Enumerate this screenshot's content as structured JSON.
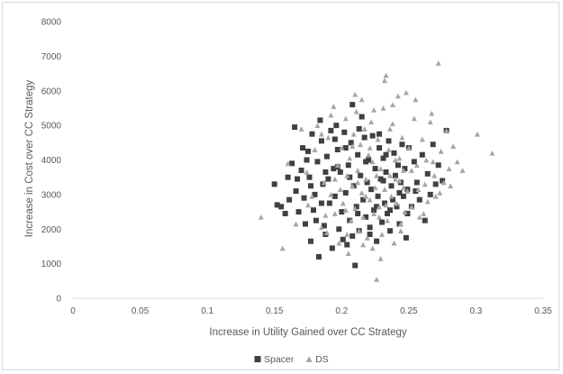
{
  "chart_data": {
    "type": "scatter",
    "title": "",
    "xlabel": "Increase in Utility Gained over CC Strategy",
    "ylabel": "Increase in Cost over CC Strategy",
    "xlim": [
      0,
      0.35
    ],
    "ylim": [
      0,
      8000
    ],
    "x_ticks": [
      "0",
      "0.05",
      "0.1",
      "0.15",
      "0.2",
      "0.25",
      "0.3",
      "0.35"
    ],
    "y_ticks": [
      "0",
      "1000",
      "2000",
      "3000",
      "4000",
      "5000",
      "6000",
      "7000",
      "8000"
    ],
    "grid": false,
    "legend_position": "bottom",
    "series": [
      {
        "name": "Spacer",
        "marker": "square",
        "color": "#404040",
        "points": [
          [
            0.15,
            3300
          ],
          [
            0.152,
            2700
          ],
          [
            0.155,
            2650
          ],
          [
            0.158,
            2450
          ],
          [
            0.16,
            3500
          ],
          [
            0.161,
            2850
          ],
          [
            0.163,
            3900
          ],
          [
            0.165,
            4950
          ],
          [
            0.166,
            3100
          ],
          [
            0.168,
            2500
          ],
          [
            0.17,
            3700
          ],
          [
            0.171,
            4350
          ],
          [
            0.172,
            2900
          ],
          [
            0.173,
            2150
          ],
          [
            0.175,
            4250
          ],
          [
            0.176,
            3500
          ],
          [
            0.177,
            1650
          ],
          [
            0.178,
            4750
          ],
          [
            0.179,
            2550
          ],
          [
            0.18,
            3000
          ],
          [
            0.181,
            2250
          ],
          [
            0.182,
            3950
          ],
          [
            0.183,
            1200
          ],
          [
            0.184,
            5150
          ],
          [
            0.185,
            4550
          ],
          [
            0.186,
            3300
          ],
          [
            0.187,
            2100
          ],
          [
            0.188,
            1850
          ],
          [
            0.189,
            4100
          ],
          [
            0.19,
            3450
          ],
          [
            0.191,
            2750
          ],
          [
            0.192,
            4850
          ],
          [
            0.193,
            1450
          ],
          [
            0.194,
            3750
          ],
          [
            0.195,
            2950
          ],
          [
            0.196,
            5000
          ],
          [
            0.197,
            4300
          ],
          [
            0.198,
            2000
          ],
          [
            0.199,
            3650
          ],
          [
            0.2,
            2500
          ],
          [
            0.201,
            1700
          ],
          [
            0.202,
            4800
          ],
          [
            0.203,
            3050
          ],
          [
            0.204,
            1550
          ],
          [
            0.205,
            3850
          ],
          [
            0.206,
            2250
          ],
          [
            0.207,
            4500
          ],
          [
            0.208,
            5600
          ],
          [
            0.209,
            3250
          ],
          [
            0.21,
            950
          ],
          [
            0.211,
            2650
          ],
          [
            0.212,
            4150
          ],
          [
            0.213,
            1950
          ],
          [
            0.214,
            3550
          ],
          [
            0.215,
            5250
          ],
          [
            0.216,
            2850
          ],
          [
            0.217,
            4650
          ],
          [
            0.218,
            2350
          ],
          [
            0.219,
            3350
          ],
          [
            0.22,
            4000
          ],
          [
            0.221,
            1850
          ],
          [
            0.222,
            3150
          ],
          [
            0.223,
            4700
          ],
          [
            0.224,
            2550
          ],
          [
            0.225,
            3750
          ],
          [
            0.226,
            1650
          ],
          [
            0.227,
            2950
          ],
          [
            0.228,
            4350
          ],
          [
            0.229,
            3450
          ],
          [
            0.23,
            2200
          ],
          [
            0.231,
            4050
          ],
          [
            0.232,
            2750
          ],
          [
            0.233,
            3650
          ],
          [
            0.234,
            2450
          ],
          [
            0.235,
            4550
          ],
          [
            0.236,
            1950
          ],
          [
            0.237,
            3250
          ],
          [
            0.238,
            2850
          ],
          [
            0.239,
            4200
          ],
          [
            0.24,
            3550
          ],
          [
            0.241,
            2650
          ],
          [
            0.242,
            3850
          ],
          [
            0.243,
            2150
          ],
          [
            0.244,
            3350
          ],
          [
            0.245,
            4450
          ],
          [
            0.246,
            2950
          ],
          [
            0.247,
            3750
          ],
          [
            0.248,
            1750
          ],
          [
            0.249,
            3150
          ],
          [
            0.25,
            4350
          ],
          [
            0.252,
            2650
          ],
          [
            0.254,
            3950
          ],
          [
            0.256,
            3350
          ],
          [
            0.258,
            2850
          ],
          [
            0.26,
            4150
          ],
          [
            0.262,
            2250
          ],
          [
            0.264,
            3600
          ],
          [
            0.266,
            3000
          ],
          [
            0.268,
            4450
          ],
          [
            0.27,
            3300
          ],
          [
            0.272,
            3850
          ],
          [
            0.275,
            3400
          ],
          [
            0.278,
            4850
          ],
          [
            0.197,
            3800
          ],
          [
            0.203,
            4350
          ],
          [
            0.218,
            3950
          ],
          [
            0.226,
            2650
          ],
          [
            0.233,
            4150
          ],
          [
            0.243,
            3050
          ],
          [
            0.212,
            2450
          ],
          [
            0.188,
            3650
          ],
          [
            0.177,
            3250
          ],
          [
            0.167,
            3450
          ],
          [
            0.208,
            1800
          ],
          [
            0.221,
            2050
          ],
          [
            0.236,
            2550
          ],
          [
            0.195,
            4600
          ],
          [
            0.213,
            4900
          ],
          [
            0.228,
            4750
          ],
          [
            0.185,
            2750
          ],
          [
            0.174,
            4000
          ],
          [
            0.206,
            3500
          ],
          [
            0.231,
            3400
          ],
          [
            0.249,
            2450
          ],
          [
            0.255,
            3100
          ]
        ]
      },
      {
        "name": "DS",
        "marker": "triangle",
        "color": "#a5a5a5",
        "points": [
          [
            0.14,
            2350
          ],
          [
            0.156,
            1450
          ],
          [
            0.16,
            3900
          ],
          [
            0.166,
            2150
          ],
          [
            0.17,
            4900
          ],
          [
            0.174,
            3650
          ],
          [
            0.178,
            2950
          ],
          [
            0.18,
            4300
          ],
          [
            0.182,
            5000
          ],
          [
            0.185,
            2050
          ],
          [
            0.187,
            3350
          ],
          [
            0.189,
            1900
          ],
          [
            0.19,
            4650
          ],
          [
            0.192,
            3000
          ],
          [
            0.194,
            5550
          ],
          [
            0.195,
            2450
          ],
          [
            0.197,
            3850
          ],
          [
            0.198,
            1600
          ],
          [
            0.2,
            4350
          ],
          [
            0.201,
            2750
          ],
          [
            0.203,
            5200
          ],
          [
            0.204,
            3550
          ],
          [
            0.205,
            1300
          ],
          [
            0.206,
            4050
          ],
          [
            0.207,
            2250
          ],
          [
            0.208,
            3250
          ],
          [
            0.209,
            4750
          ],
          [
            0.21,
            2600
          ],
          [
            0.211,
            5400
          ],
          [
            0.212,
            3700
          ],
          [
            0.213,
            1950
          ],
          [
            0.214,
            4450
          ],
          [
            0.215,
            3050
          ],
          [
            0.216,
            2350
          ],
          [
            0.217,
            4900
          ],
          [
            0.218,
            3450
          ],
          [
            0.219,
            1750
          ],
          [
            0.22,
            4150
          ],
          [
            0.221,
            2850
          ],
          [
            0.222,
            5100
          ],
          [
            0.223,
            3950
          ],
          [
            0.224,
            2450
          ],
          [
            0.225,
            3200
          ],
          [
            0.226,
            550
          ],
          [
            0.227,
            4600
          ],
          [
            0.228,
            2650
          ],
          [
            0.229,
            3750
          ],
          [
            0.23,
            1850
          ],
          [
            0.231,
            5500
          ],
          [
            0.232,
            3150
          ],
          [
            0.233,
            6450
          ],
          [
            0.234,
            2250
          ],
          [
            0.235,
            4300
          ],
          [
            0.236,
            3550
          ],
          [
            0.237,
            2950
          ],
          [
            0.238,
            5050
          ],
          [
            0.239,
            1600
          ],
          [
            0.24,
            4000
          ],
          [
            0.241,
            2750
          ],
          [
            0.242,
            5850
          ],
          [
            0.243,
            3400
          ],
          [
            0.244,
            2150
          ],
          [
            0.245,
            4650
          ],
          [
            0.246,
            3700
          ],
          [
            0.247,
            2500
          ],
          [
            0.248,
            5950
          ],
          [
            0.249,
            3100
          ],
          [
            0.25,
            4350
          ],
          [
            0.252,
            2650
          ],
          [
            0.254,
            5200
          ],
          [
            0.256,
            3850
          ],
          [
            0.258,
            2350
          ],
          [
            0.26,
            4600
          ],
          [
            0.262,
            3300
          ],
          [
            0.264,
            2800
          ],
          [
            0.266,
            5100
          ],
          [
            0.268,
            3950
          ],
          [
            0.27,
            2950
          ],
          [
            0.272,
            6800
          ],
          [
            0.274,
            4250
          ],
          [
            0.276,
            3350
          ],
          [
            0.278,
            4850
          ],
          [
            0.28,
            3750
          ],
          [
            0.283,
            4400
          ],
          [
            0.286,
            3950
          ],
          [
            0.29,
            3700
          ],
          [
            0.301,
            4750
          ],
          [
            0.312,
            4200
          ],
          [
            0.232,
            6300
          ],
          [
            0.215,
            5750
          ],
          [
            0.185,
            4750
          ],
          [
            0.199,
            3150
          ],
          [
            0.223,
            1450
          ],
          [
            0.208,
            4400
          ],
          [
            0.236,
            4900
          ],
          [
            0.246,
            3200
          ],
          [
            0.228,
            2350
          ],
          [
            0.218,
            2950
          ],
          [
            0.203,
            2550
          ],
          [
            0.226,
            3550
          ],
          [
            0.24,
            3450
          ],
          [
            0.252,
            3700
          ],
          [
            0.263,
            4000
          ],
          [
            0.195,
            3450
          ],
          [
            0.212,
            3350
          ],
          [
            0.221,
            4350
          ],
          [
            0.233,
            2700
          ],
          [
            0.243,
            4050
          ],
          [
            0.257,
            3150
          ],
          [
            0.269,
            3550
          ],
          [
            0.175,
            2700
          ],
          [
            0.188,
            2400
          ],
          [
            0.204,
            1850
          ],
          [
            0.216,
            1550
          ],
          [
            0.229,
            1150
          ],
          [
            0.244,
            1950
          ],
          [
            0.261,
            2450
          ],
          [
            0.273,
            3050
          ],
          [
            0.281,
            3250
          ],
          [
            0.192,
            5300
          ],
          [
            0.21,
            5900
          ],
          [
            0.224,
            5450
          ],
          [
            0.238,
            5600
          ],
          [
            0.255,
            5750
          ],
          [
            0.267,
            5350
          ]
        ]
      }
    ]
  }
}
